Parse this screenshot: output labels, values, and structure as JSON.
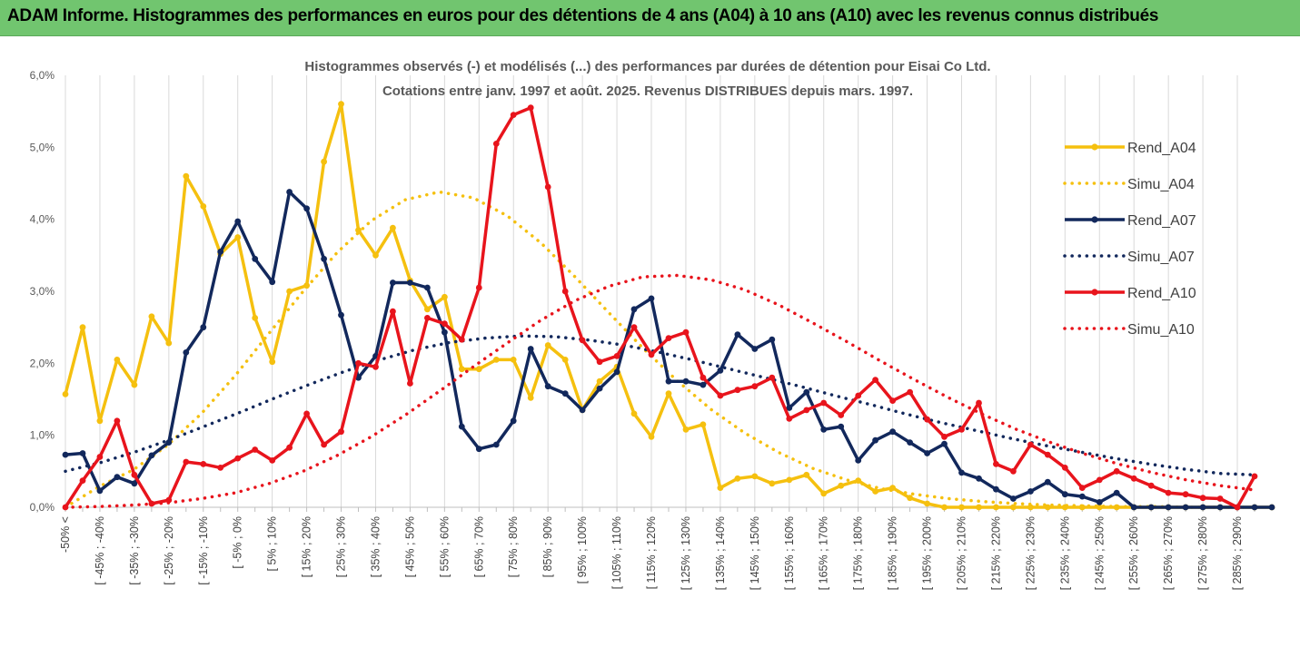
{
  "banner": {
    "title": "ADAM Informe. Histogrammes des performances en euros pour des détentions de 4 ans (A04) à 10 ans (A10) avec les revenus connus distribués"
  },
  "chart_data": {
    "type": "line",
    "title": "Histogrammes observés (-) et modélisés (...) des performances par durées de détention pour Eisai Co Ltd.",
    "subtitle": "Cotations entre janv. 1997 et août. 2025. Revenus DISTRIBUES depuis mars. 1997.",
    "ylim": [
      0,
      6
    ],
    "y_ticks": [
      "0,0%",
      "1,0%",
      "2,0%",
      "3,0%",
      "4,0%",
      "5,0%",
      "6,0%"
    ],
    "grid": "vertical",
    "legend_position": "right",
    "tick_labels": [
      "-50% <",
      "[ -45% ; -40%",
      "[ -35% ; -30%",
      "[ -25% ; -20%",
      "[ -15% ; -10%",
      "[ -5% ; 0%",
      "[ 5% ; 10%",
      "[ 15% ; 20%",
      "[ 25% ; 30%",
      "[ 35% ; 40%",
      "[ 45% ; 50%",
      "[ 55% ; 60%",
      "[ 65% ; 70%",
      "[ 75% ; 80%",
      "[ 85% ; 90%",
      "[ 95% ; 100%",
      "[ 105% ; 110%",
      "[ 115% ; 120%",
      "[ 125% ; 130%",
      "[ 135% ; 140%",
      "[ 145% ; 150%",
      "[ 155% ; 160%",
      "[ 165% ; 170%",
      "[ 175% ; 180%",
      "[ 185% ; 190%",
      "[ 195% ; 200%",
      "[ 205% ; 210%",
      "[ 215% ; 220%",
      "[ 225% ; 230%",
      "[ 235% ; 240%",
      "[ 245% ; 250%",
      "[ 255% ; 260%",
      "[ 265% ; 270%",
      "[ 275% ; 280%",
      "[ 285% ; 290%"
    ],
    "series": [
      {
        "name": "Rend_A04",
        "color": "#f5c00f",
        "style": "solid",
        "values": [
          1.57,
          2.5,
          1.2,
          2.05,
          1.7,
          2.65,
          2.28,
          4.6,
          4.18,
          3.52,
          3.75,
          2.63,
          2.02,
          3.0,
          3.08,
          4.8,
          5.6,
          3.85,
          3.5,
          3.88,
          3.15,
          2.75,
          2.92,
          1.92,
          1.92,
          2.05,
          2.05,
          1.52,
          2.25,
          2.05,
          1.35,
          1.75,
          1.95,
          1.3,
          0.98,
          1.58,
          1.08,
          1.15,
          0.27,
          0.4,
          0.43,
          0.33,
          0.38,
          0.45,
          0.19,
          0.3,
          0.37,
          0.22,
          0.27,
          0.13,
          0.05,
          0.0,
          0.0,
          0.0,
          0.0,
          0.0,
          0.0,
          0.0,
          0.0,
          0.0,
          0.0,
          0.0,
          0.0,
          0.0,
          0.0,
          0.0,
          0.0,
          0.0,
          0.0,
          0.0,
          0.0
        ]
      },
      {
        "name": "Simu_A04",
        "color": "#f5c00f",
        "style": "dotted",
        "values": [
          0.0,
          0.29,
          0.52,
          0.86,
          1.3,
          1.83,
          2.42,
          3.0,
          3.54,
          3.98,
          4.27,
          4.38,
          4.3,
          4.05,
          3.67,
          3.2,
          2.7,
          2.21,
          1.76,
          1.36,
          1.03,
          0.76,
          0.54,
          0.38,
          0.26,
          0.18,
          0.12,
          0.08,
          0.05,
          0.03,
          0.02,
          0.01,
          0.01,
          0.0,
          0.0,
          0.0
        ]
      },
      {
        "name": "Rend_A07",
        "color": "#12285c",
        "style": "solid",
        "values": [
          0.73,
          0.75,
          0.23,
          0.42,
          0.33,
          0.72,
          0.9,
          2.15,
          2.5,
          3.55,
          3.97,
          3.45,
          3.13,
          4.38,
          4.15,
          3.45,
          2.67,
          1.8,
          2.1,
          3.12,
          3.12,
          3.05,
          2.43,
          1.12,
          0.81,
          0.87,
          1.2,
          2.2,
          1.68,
          1.58,
          1.35,
          1.65,
          1.88,
          2.75,
          2.9,
          1.75,
          1.75,
          1.7,
          1.9,
          2.4,
          2.2,
          2.33,
          1.38,
          1.6,
          1.08,
          1.12,
          0.65,
          0.93,
          1.05,
          0.9,
          0.75,
          0.88,
          0.48,
          0.4,
          0.25,
          0.12,
          0.22,
          0.35,
          0.18,
          0.15,
          0.07,
          0.2,
          0.0,
          0.0,
          0.0,
          0.0,
          0.0,
          0.0,
          0.0,
          0.0,
          0.0
        ]
      },
      {
        "name": "Simu_A07",
        "color": "#12285c",
        "style": "dotted",
        "values": [
          0.5,
          0.62,
          0.77,
          0.94,
          1.13,
          1.32,
          1.52,
          1.71,
          1.89,
          2.05,
          2.19,
          2.29,
          2.35,
          2.38,
          2.37,
          2.32,
          2.25,
          2.15,
          2.04,
          1.92,
          1.8,
          1.68,
          1.55,
          1.43,
          1.3,
          1.18,
          1.07,
          0.96,
          0.86,
          0.77,
          0.68,
          0.6,
          0.53,
          0.47,
          0.45
        ]
      },
      {
        "name": "Rend_A10",
        "color": "#e8141c",
        "style": "solid",
        "values": [
          0.0,
          0.37,
          0.7,
          1.2,
          0.45,
          0.05,
          0.1,
          0.63,
          0.6,
          0.55,
          0.68,
          0.8,
          0.65,
          0.83,
          1.3,
          0.87,
          1.05,
          2.0,
          1.95,
          2.72,
          1.72,
          2.63,
          2.55,
          2.33,
          3.05,
          5.05,
          5.45,
          5.55,
          4.45,
          3.0,
          2.32,
          2.02,
          2.1,
          2.5,
          2.12,
          2.35,
          2.43,
          1.8,
          1.55,
          1.63,
          1.68,
          1.8,
          1.23,
          1.35,
          1.45,
          1.28,
          1.55,
          1.77,
          1.48,
          1.6,
          1.22,
          0.98,
          1.08,
          1.45,
          0.6,
          0.5,
          0.87,
          0.73,
          0.55,
          0.27,
          0.38,
          0.5,
          0.4,
          0.3,
          0.2,
          0.18,
          0.13,
          0.12,
          0.0,
          0.43
        ]
      },
      {
        "name": "Simu_A10",
        "color": "#e8141c",
        "style": "dotted",
        "values": [
          0.0,
          0.01,
          0.03,
          0.06,
          0.12,
          0.2,
          0.33,
          0.5,
          0.72,
          0.98,
          1.28,
          1.61,
          1.95,
          2.28,
          2.6,
          2.87,
          3.07,
          3.2,
          3.22,
          3.16,
          3.02,
          2.81,
          2.56,
          2.3,
          2.03,
          1.77,
          1.52,
          1.29,
          1.08,
          0.9,
          0.74,
          0.6,
          0.48,
          0.38,
          0.3,
          0.24
        ]
      }
    ]
  }
}
